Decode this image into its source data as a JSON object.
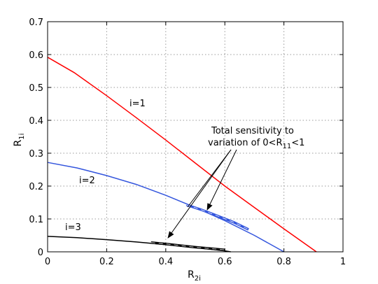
{
  "chart_data": {
    "type": "line",
    "xlabel": "R",
    "xlabel_sub": "2i",
    "ylabel": "R",
    "ylabel_sub": "1i",
    "xlim": [
      0,
      1
    ],
    "ylim": [
      0,
      0.7
    ],
    "x_ticks": [
      "0",
      "0.2",
      "0.4",
      "0.6",
      "0.8",
      "1"
    ],
    "y_ticks": [
      "0",
      "0.1",
      "0.2",
      "0.3",
      "0.4",
      "0.5",
      "0.6",
      "0.7"
    ],
    "grid": true,
    "series": [
      {
        "label": "i=1",
        "color": "#ff0000",
        "x": [
          0,
          0.09,
          0.2,
          0.3,
          0.4,
          0.5,
          0.6,
          0.7,
          0.8,
          0.91
        ],
        "y": [
          0.592,
          0.545,
          0.475,
          0.408,
          0.34,
          0.27,
          0.2,
          0.135,
          0.07,
          0
        ]
      },
      {
        "label": "i=2",
        "color": "#3355dd",
        "x": [
          0,
          0.1,
          0.2,
          0.3,
          0.4,
          0.5,
          0.6,
          0.7,
          0.8
        ],
        "y": [
          0.272,
          0.255,
          0.232,
          0.205,
          0.172,
          0.135,
          0.095,
          0.05,
          0
        ]
      },
      {
        "label": "i=3",
        "color": "#000000",
        "x": [
          0,
          0.1,
          0.2,
          0.3,
          0.4,
          0.5,
          0.6,
          0.62
        ],
        "y": [
          0.047,
          0.043,
          0.037,
          0.03,
          0.022,
          0.013,
          0.003,
          0
        ]
      }
    ],
    "sensitivity_segments": [
      {
        "series": "i=2",
        "color": "#3355dd",
        "x": [
          0.47,
          0.52,
          0.57,
          0.63,
          0.68
        ],
        "y": [
          0.143,
          0.128,
          0.111,
          0.09,
          0.068
        ]
      },
      {
        "series": "i=3",
        "color": "#000000",
        "x": [
          0.35,
          0.4,
          0.45,
          0.5,
          0.55,
          0.6
        ],
        "y": [
          0.028,
          0.024,
          0.019,
          0.014,
          0.01,
          0.006
        ]
      }
    ],
    "annotation": {
      "line1": "Total sensitivity to",
      "line2_prefix": "variation of 0<R",
      "line2_sub": "11",
      "line2_suffix": "<1"
    }
  }
}
